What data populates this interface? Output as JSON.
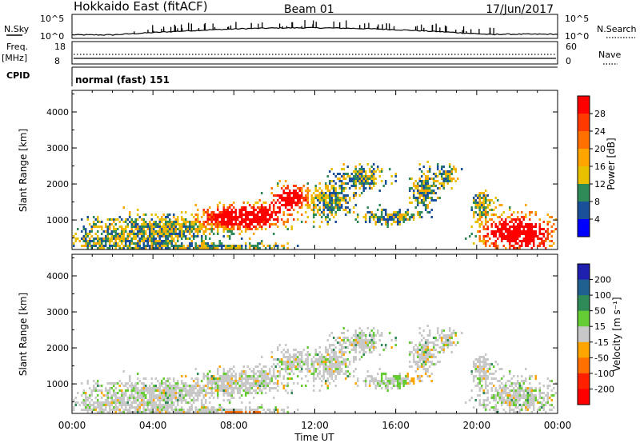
{
  "header": {
    "title": "Hokkaido East (fitACF)",
    "beam": "Beam 01",
    "date": "17/Jun/2017"
  },
  "nsky_panel": {
    "left_label": "N.Sky",
    "right_label": "N.Search",
    "ticks": [
      "10^5",
      "10^0"
    ]
  },
  "freq_panel": {
    "left_label_1": "Freq.",
    "left_label_2": "[MHz]",
    "left_ticks": [
      "18",
      "8"
    ],
    "right_label": "Nave",
    "right_ticks": [
      "60",
      "0"
    ]
  },
  "cpid_panel": {
    "label": "CPID",
    "text": "normal (fast) 151"
  },
  "chart_data": [
    {
      "type": "heatmap",
      "name": "power",
      "ylabel": "Slant Range [km]",
      "y_ticks": [
        "4000",
        "3000",
        "2000",
        "1000"
      ],
      "y_range": [
        180,
        4600
      ],
      "x_range_hours": [
        0,
        24
      ],
      "colorbar_label": "Power [dB]",
      "colorbar_ticks": [
        "28",
        "24",
        "20",
        "16",
        "12",
        "8",
        "4"
      ],
      "colorbar_colors": [
        "#ff0000",
        "#ff3a00",
        "#ff7000",
        "#ffa500",
        "#e8c000",
        "#2e8b57",
        "#1a4f9a",
        "#0000ff"
      ]
    },
    {
      "type": "heatmap",
      "name": "velocity",
      "ylabel": "Slant Range [km]",
      "y_ticks": [
        "4000",
        "3000",
        "2000",
        "1000"
      ],
      "y_range": [
        180,
        4600
      ],
      "x_range_hours": [
        0,
        24
      ],
      "colorbar_label": "Velocity [m s⁻¹]",
      "colorbar_ticks": [
        "200",
        "100",
        "50",
        "15",
        "-15",
        "-50",
        "-100",
        "-200"
      ],
      "colorbar_colors": [
        "#2020b0",
        "#1f6090",
        "#2e8b57",
        "#66cc33",
        "#c8c8c8",
        "#ffa500",
        "#ff7000",
        "#ff2000",
        "#ff0000"
      ]
    }
  ],
  "x_axis": {
    "label": "Time UT",
    "ticks": [
      "00:00",
      "04:00",
      "08:00",
      "12:00",
      "16:00",
      "20:00",
      "00:00"
    ]
  }
}
